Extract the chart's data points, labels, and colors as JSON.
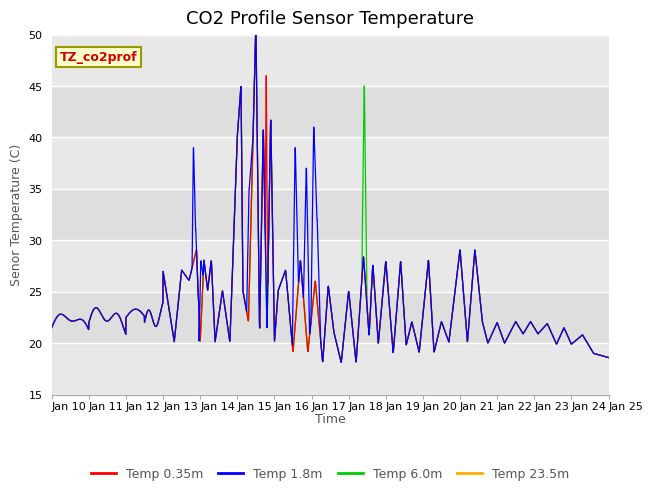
{
  "title": "CO2 Profile Sensor Temperature",
  "ylabel": "Senor Temperature (C)",
  "xlabel": "Time",
  "annotation": "TZ_co2prof",
  "ylim": [
    15,
    50
  ],
  "xlim": [
    0,
    15
  ],
  "xtick_labels": [
    "Jan 10",
    "Jan 11",
    "Jan 12",
    "Jan 13",
    "Jan 14",
    "Jan 15",
    "Jan 16",
    "Jan 17",
    "Jan 18",
    "Jan 19",
    "Jan 20",
    "Jan 21",
    "Jan 22",
    "Jan 23",
    "Jan 24",
    "Jan 25"
  ],
  "ytick_vals": [
    15,
    20,
    25,
    30,
    35,
    40,
    45,
    50
  ],
  "colors": {
    "red": "#ff0000",
    "blue": "#0000ff",
    "green": "#00cc00",
    "orange": "#ffaa00"
  },
  "legend_labels": [
    "Temp 0.35m",
    "Temp 1.8m",
    "Temp 6.0m",
    "Temp 23.5m"
  ],
  "annotation_box_color": "#ffffcc",
  "annotation_text_color": "#cc0000",
  "annotation_border_color": "#999900",
  "plot_bg_color": "#eeeeee",
  "band_color": "#e0e0e0",
  "title_fontsize": 13,
  "label_fontsize": 9,
  "tick_fontsize": 8
}
